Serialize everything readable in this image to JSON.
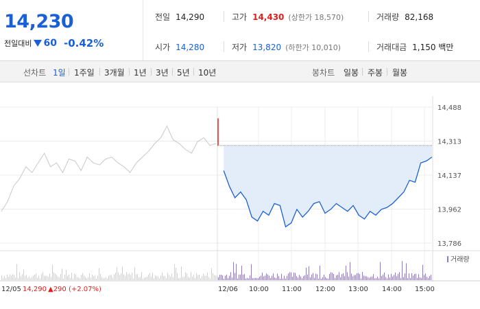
{
  "summary": {
    "price": "14,230",
    "change_label": "전일대비",
    "change_amount": "60",
    "change_percent": "-0.42%"
  },
  "stats": {
    "prev_label": "전일",
    "prev_value": "14,290",
    "high_label": "고가",
    "high_value": "14,430",
    "upper_limit": "(상한가 18,570)",
    "volume_label": "거래량",
    "volume_value": "82,168",
    "open_label": "시가",
    "open_value": "14,280",
    "low_label": "저가",
    "low_value": "13,820",
    "lower_limit": "(하한가 10,010)",
    "amount_label": "거래대금",
    "amount_value": "1,150 백만"
  },
  "line_tabs": {
    "label": "선차트",
    "items": [
      "1일",
      "1주일",
      "3개월",
      "1년",
      "3년",
      "5년",
      "10년"
    ],
    "selected": "1일"
  },
  "candle_tabs": {
    "label": "봉차트",
    "items": [
      "일봉",
      "주봉",
      "월봉"
    ]
  },
  "colors": {
    "accent_blue": "#1a5fd6",
    "up_red": "#e02020",
    "volume_purple": "#8e7cc3"
  },
  "chart_data": {
    "type": "line",
    "ylim": [
      13786,
      14488
    ],
    "yticks": [
      "14,488",
      "14,313",
      "14,137",
      "13,962",
      "13,786"
    ],
    "prev_close": 14290,
    "prev_day": {
      "date": "12/05",
      "close_text": "14,290",
      "change_text": "▲290 (+2.07%)",
      "values": [
        13950,
        14000,
        14080,
        14120,
        14180,
        14150,
        14200,
        14250,
        14180,
        14200,
        14150,
        14220,
        14210,
        14160,
        14230,
        14200,
        14190,
        14220,
        14230,
        14200,
        14180,
        14150,
        14200,
        14230,
        14260,
        14300,
        14330,
        14390,
        14320,
        14300,
        14270,
        14250,
        14310,
        14330,
        14290,
        14300
      ]
    },
    "today": {
      "date": "12/06",
      "values": [
        14430,
        14160,
        14080,
        14020,
        14050,
        14010,
        13920,
        13900,
        13950,
        13930,
        13990,
        13980,
        13870,
        13890,
        13960,
        13920,
        13950,
        13990,
        14000,
        13940,
        13960,
        13990,
        13970,
        13950,
        13980,
        13930,
        13910,
        13950,
        13930,
        13960,
        13970,
        13990,
        14020,
        14050,
        14110,
        14100,
        14200,
        14210,
        14230
      ]
    },
    "time_labels": [
      "10:00",
      "11:00",
      "12:00",
      "13:00",
      "14:00",
      "15:00"
    ],
    "volume_label": "거래량"
  }
}
